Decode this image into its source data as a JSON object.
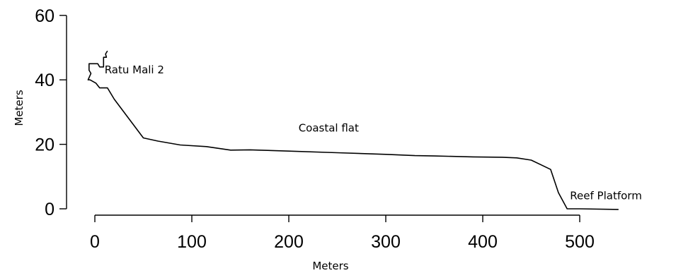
{
  "chart_data": {
    "type": "line",
    "xlabel": "Meters",
    "ylabel": "Meters",
    "xlim": [
      0,
      500
    ],
    "ylim": [
      0,
      60
    ],
    "x_ticks": [
      0,
      100,
      200,
      300,
      400,
      500
    ],
    "y_ticks": [
      0,
      20,
      40,
      60
    ],
    "grid": false,
    "annotations": [
      {
        "text": "Ratu Mali 2",
        "x": 10,
        "y": 42
      },
      {
        "text": "Coastal flat",
        "x": 210,
        "y": 24
      },
      {
        "text": "Reef Platform",
        "x": 490,
        "y": 3
      }
    ],
    "series": [
      {
        "x": [
          13,
          11,
          12,
          9,
          9,
          5,
          3,
          -1,
          -6,
          -6,
          -4,
          -7,
          -5,
          1,
          5,
          13,
          20,
          50,
          65,
          88,
          115,
          140,
          160,
          200,
          250,
          300,
          330,
          350,
          390,
          420,
          435,
          450,
          470,
          478,
          487,
          500,
          540
        ],
        "y": [
          49,
          48,
          47,
          47,
          44,
          44,
          45,
          45,
          45,
          43,
          42,
          40,
          40,
          39,
          37.5,
          37.5,
          34,
          22,
          21,
          19.8,
          19.3,
          18.2,
          18.3,
          17.9,
          17.4,
          16.9,
          16.5,
          16.4,
          16.1,
          16.0,
          15.8,
          15.1,
          12.2,
          5,
          0,
          0,
          -0.2
        ]
      }
    ]
  }
}
